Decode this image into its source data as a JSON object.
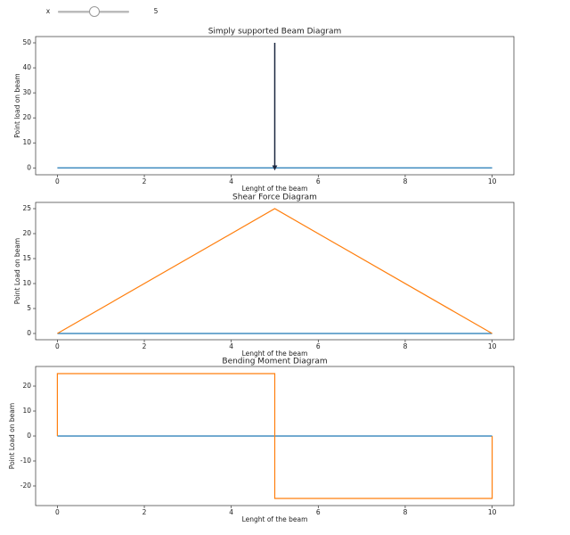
{
  "slider": {
    "label": "x",
    "value": 5
  },
  "chart_data": [
    {
      "type": "line",
      "title": "Simply supported Beam Diagram",
      "xlabel": "Lenght of the beam",
      "ylabel": "Point load on beam",
      "xlim": [
        -0.5,
        10.5
      ],
      "xticks": [
        0,
        2,
        4,
        6,
        8,
        10
      ],
      "ylim": [
        -2.75,
        52.5
      ],
      "yticks": [
        0,
        10,
        20,
        30,
        40,
        50
      ],
      "series": [
        {
          "color": "#1f77b4",
          "x": [
            0,
            10
          ],
          "values": [
            0,
            0
          ]
        },
        {
          "color": "#1c2841",
          "x": [
            5,
            5
          ],
          "values": [
            50,
            0
          ],
          "arrow": true
        }
      ]
    },
    {
      "type": "line",
      "title": "Shear Force Diagram",
      "xlabel": "Lenght of the beam",
      "ylabel": "Point Load on beam",
      "xlim": [
        -0.5,
        10.5
      ],
      "xticks": [
        0,
        2,
        4,
        6,
        8,
        10
      ],
      "ylim": [
        -1.25,
        26.25
      ],
      "yticks": [
        0,
        5,
        10,
        15,
        20,
        25
      ],
      "series": [
        {
          "color": "#1f77b4",
          "x": [
            0,
            10
          ],
          "values": [
            0,
            0
          ]
        },
        {
          "color": "#ff7f0e",
          "x": [
            0,
            5,
            10
          ],
          "values": [
            0,
            25,
            0
          ]
        }
      ]
    },
    {
      "type": "line",
      "title": "Bending Moment Diagram",
      "xlabel": "Lenght of the beam",
      "ylabel": "Point Load on beam",
      "xlim": [
        -0.5,
        10.5
      ],
      "xticks": [
        0,
        2,
        4,
        6,
        8,
        10
      ],
      "ylim": [
        -27.86,
        27.86
      ],
      "yticks": [
        -20,
        -10,
        0,
        10,
        20
      ],
      "series": [
        {
          "color": "#1f77b4",
          "x": [
            0,
            10
          ],
          "values": [
            0,
            0
          ]
        },
        {
          "color": "#ff7f0e",
          "x": [
            0,
            0,
            5,
            5,
            10,
            10
          ],
          "values": [
            0,
            25,
            25,
            -25,
            -25,
            0
          ]
        }
      ]
    }
  ]
}
